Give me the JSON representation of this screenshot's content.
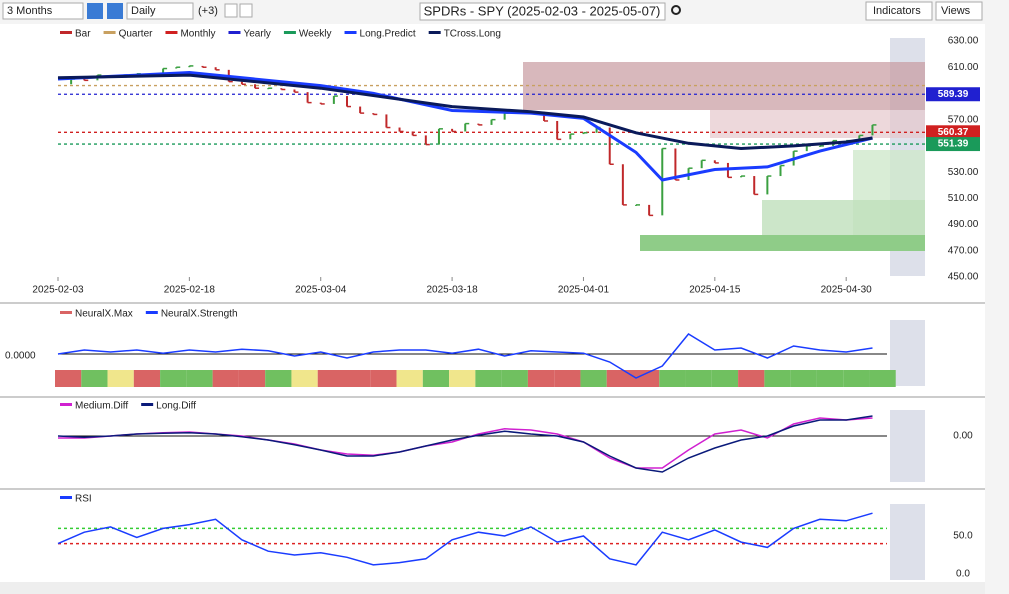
{
  "toolbar": {
    "period": "3 Months",
    "interval": "Daily",
    "offset": "(+3)",
    "symbol": "SPDRs - SPY (2025-02-03 - 2025-05-07)",
    "indicators": "Indicators",
    "views": "Views"
  },
  "chart_data": [
    {
      "type": "candlestick",
      "bars": {
        "name": "Bar",
        "up_color": "#3aa040",
        "down_color": "#c0282a",
        "values": [
          597,
          601,
          600,
          604,
          603,
          604,
          605,
          605,
          609,
          610,
          611,
          610,
          608,
          599,
          597,
          594,
          594,
          593,
          591,
          583,
          582,
          588,
          580,
          575,
          574,
          564,
          561,
          558,
          551,
          563,
          561,
          567,
          566,
          570,
          575,
          577,
          576,
          569,
          555,
          559,
          560,
          564,
          536,
          505,
          505,
          497,
          548,
          524,
          533,
          539,
          537,
          526,
          527,
          513,
          527,
          535,
          546,
          550,
          550,
          554,
          554,
          558,
          566
        ]
      },
      "levels": [
        {
          "name": "Quarter",
          "color": "#c8a060",
          "value": 596,
          "box": false
        },
        {
          "name": "Monthly",
          "color": "#d02020",
          "value": 560.37,
          "box": true
        },
        {
          "name": "Yearly",
          "color": "#2020d0",
          "value": 589.39,
          "box": true
        },
        {
          "name": "Weekly",
          "color": "#1a9a5a",
          "value": 551.39,
          "box": true
        }
      ],
      "series": [
        {
          "name": "Long.Predict",
          "color": "#1a3cff",
          "x": [
            0,
            10,
            20,
            24,
            30,
            36,
            40,
            44,
            46,
            50,
            54,
            58,
            62
          ],
          "values": [
            601,
            606,
            596,
            590,
            577,
            575,
            571,
            545,
            524,
            532,
            534,
            546,
            556
          ]
        },
        {
          "name": "TCross.Long",
          "color": "#0a1a5a",
          "x": [
            0,
            10,
            20,
            30,
            36,
            40,
            44,
            48,
            52,
            56,
            60,
            62
          ],
          "values": [
            602,
            604,
            594,
            580,
            576,
            572,
            560,
            552,
            548,
            550,
            553,
            556
          ]
        }
      ],
      "xlim": [
        0,
        66
      ],
      "xticks": [
        {
          "value": 0,
          "label": "2025-02-03"
        },
        {
          "value": 10,
          "label": "2025-02-18"
        },
        {
          "value": 20,
          "label": "2025-03-04"
        },
        {
          "value": 30,
          "label": "2025-03-18"
        },
        {
          "value": 40,
          "label": "2025-04-01"
        },
        {
          "value": 50,
          "label": "2025-04-15"
        },
        {
          "value": 60,
          "label": "2025-04-30"
        }
      ],
      "ylim": [
        450,
        630
      ],
      "yticks": [
        {
          "value": 450,
          "label": "450.00"
        },
        {
          "value": 470,
          "label": "470.00"
        },
        {
          "value": 490,
          "label": "490.00"
        },
        {
          "value": 510,
          "label": "510.00"
        },
        {
          "value": 530,
          "label": "530.00"
        },
        {
          "value": 550,
          "label": "550.00"
        },
        {
          "value": 570,
          "label": "570.00"
        },
        {
          "value": 590,
          "label": "590.00"
        },
        {
          "value": 610,
          "label": "610.00"
        },
        {
          "value": 630,
          "label": "630.00"
        }
      ]
    },
    {
      "type": "line",
      "x": [
        0,
        2,
        4,
        6,
        8,
        10,
        12,
        14,
        16,
        18,
        20,
        22,
        24,
        26,
        28,
        30,
        32,
        34,
        36,
        38,
        40,
        42,
        44,
        46,
        48,
        50,
        52,
        54,
        56,
        58,
        60,
        62
      ],
      "xlim": [
        0,
        66
      ],
      "ylim": [
        -1,
        1
      ],
      "yticks": [
        {
          "value": 0,
          "label": "0.0000"
        }
      ],
      "ytick_side": "left",
      "grid": true,
      "strip": {
        "name": "NeuralX.Max",
        "colors": [
          "#d96464",
          "#70c060",
          "#f0e68c",
          "#d96464",
          "#70c060",
          "#70c060",
          "#d96464",
          "#d96464",
          "#70c060",
          "#f0e68c",
          "#d96464",
          "#d96464",
          "#d96464",
          "#f0e68c",
          "#70c060",
          "#f0e68c",
          "#70c060",
          "#70c060",
          "#d96464",
          "#d96464",
          "#70c060",
          "#d96464",
          "#d96464",
          "#70c060",
          "#70c060",
          "#70c060",
          "#d96464",
          "#70c060",
          "#70c060",
          "#70c060",
          "#70c060",
          "#70c060"
        ]
      },
      "series": [
        {
          "name": "NeuralX.Strength",
          "color": "#1a3cff",
          "values": [
            0,
            0.1,
            0.05,
            0.1,
            0.02,
            0.1,
            0.05,
            0.12,
            0.08,
            -0.05,
            0.05,
            -0.1,
            0.05,
            0.1,
            0.1,
            0.02,
            0.12,
            -0.05,
            0.08,
            0.05,
            0.02,
            -0.2,
            -0.6,
            -0.3,
            0.5,
            0.1,
            0.15,
            -0.1,
            0.2,
            0.1,
            0.05,
            0.15
          ]
        }
      ]
    },
    {
      "type": "line",
      "x": [
        0,
        2,
        4,
        6,
        8,
        10,
        12,
        14,
        16,
        18,
        20,
        22,
        24,
        26,
        28,
        30,
        32,
        34,
        36,
        38,
        40,
        42,
        44,
        46,
        48,
        50,
        52,
        54,
        56,
        58,
        60,
        62
      ],
      "xlim": [
        0,
        66
      ],
      "ylim": [
        -1,
        1
      ],
      "yticks": [
        {
          "value": 0,
          "label": "0.00"
        }
      ],
      "ytick_side": "right",
      "grid": true,
      "series": [
        {
          "name": "Medium.Diff",
          "color": "#d020d0",
          "values": [
            -0.05,
            -0.05,
            0,
            0.05,
            0.08,
            0.1,
            0.05,
            0,
            -0.1,
            -0.2,
            -0.35,
            -0.45,
            -0.48,
            -0.4,
            -0.25,
            -0.15,
            0.05,
            0.18,
            0.15,
            0.05,
            -0.15,
            -0.55,
            -0.8,
            -0.8,
            -0.35,
            0.05,
            0.15,
            -0.05,
            0.3,
            0.45,
            0.4,
            0.45
          ]
        },
        {
          "name": "Long.Diff",
          "color": "#0a1a7a",
          "values": [
            0,
            -0.03,
            0,
            0.05,
            0.07,
            0.08,
            0.05,
            -0.02,
            -0.1,
            -0.22,
            -0.35,
            -0.5,
            -0.5,
            -0.4,
            -0.25,
            -0.1,
            0.02,
            0.12,
            0.05,
            0,
            -0.15,
            -0.5,
            -0.8,
            -0.9,
            -0.55,
            -0.3,
            -0.1,
            0,
            0.25,
            0.4,
            0.4,
            0.5
          ]
        }
      ]
    },
    {
      "type": "line",
      "x": [
        0,
        2,
        4,
        6,
        8,
        10,
        12,
        14,
        16,
        18,
        20,
        22,
        24,
        26,
        28,
        30,
        32,
        34,
        36,
        38,
        40,
        42,
        44,
        46,
        48,
        50,
        52,
        54,
        56,
        58,
        60,
        62
      ],
      "xlim": [
        0,
        66
      ],
      "ylim": [
        0,
        100
      ],
      "yticks": [
        {
          "value": 50,
          "label": "50.0"
        },
        {
          "value": 0,
          "label": "0.0"
        }
      ],
      "ytick_side": "right",
      "grid": false,
      "hlines": [
        {
          "value": 60,
          "color": "#33cc33"
        },
        {
          "value": 40,
          "color": "#dd2222"
        }
      ],
      "series": [
        {
          "name": "RSI",
          "color": "#1a3cff",
          "values": [
            40,
            55,
            62,
            48,
            60,
            65,
            72,
            45,
            30,
            25,
            28,
            22,
            12,
            15,
            20,
            45,
            55,
            50,
            62,
            42,
            50,
            20,
            12,
            55,
            45,
            58,
            42,
            35,
            60,
            72,
            70,
            80
          ]
        }
      ]
    }
  ]
}
